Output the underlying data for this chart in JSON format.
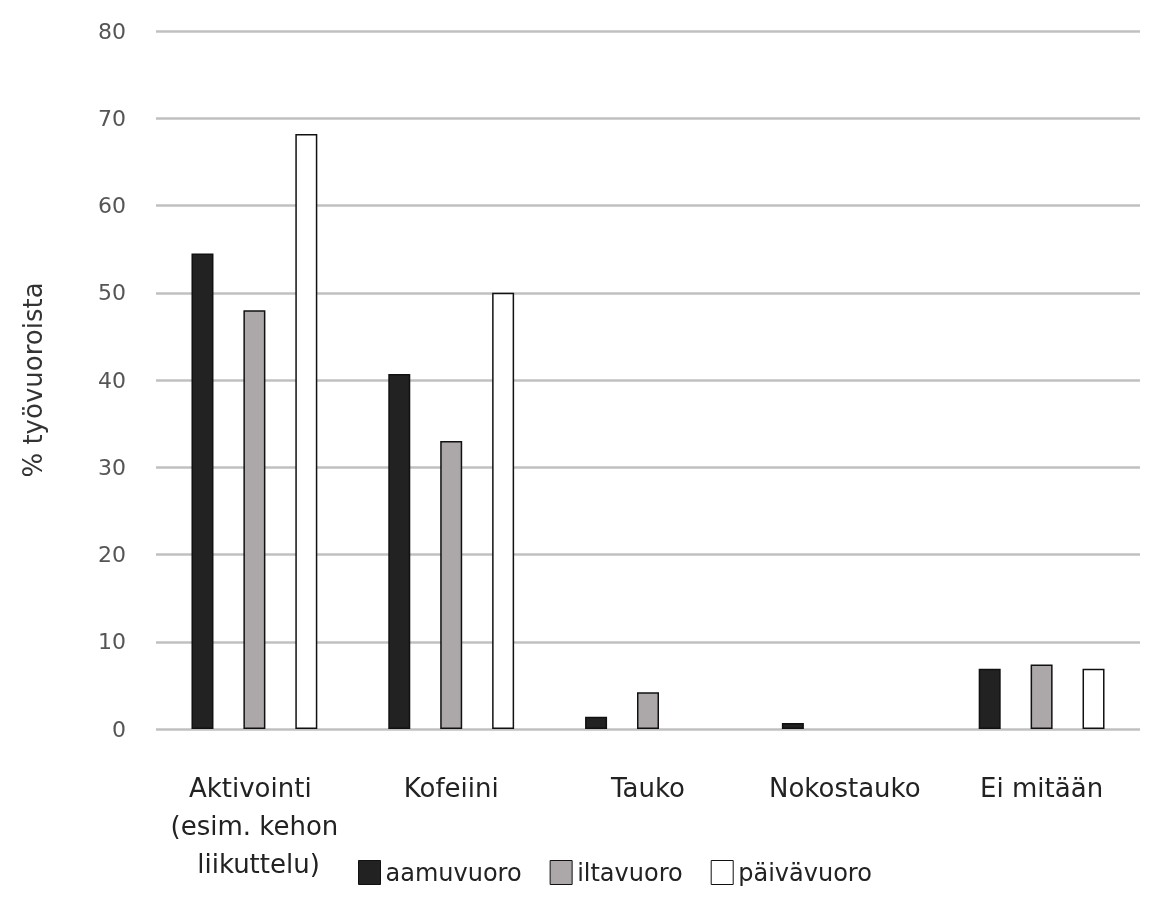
{
  "chart_data": {
    "type": "bar",
    "ylabel": "% työvuoroista",
    "categories": [
      "Aktivointi (esim. kehon liikuttelu)",
      "Kofeiini",
      "Tauko",
      "Nokostauko",
      "Ei mitään"
    ],
    "series": [
      {
        "name": "aamuvuoro",
        "color": "#222222",
        "values": [
          54.5,
          40.7,
          1.4,
          0.7,
          6.9
        ]
      },
      {
        "name": "iltavuoro",
        "color": "#aca8aa",
        "values": [
          48,
          33,
          4.2,
          0,
          7.4
        ]
      },
      {
        "name": "päivävuoro",
        "color": "#ffffff",
        "values": [
          68.2,
          50,
          0,
          0,
          6.9
        ]
      }
    ],
    "ylim": [
      0,
      80
    ],
    "yticks": [
      0,
      10,
      20,
      30,
      40,
      50,
      60,
      70,
      80
    ],
    "grid": "y",
    "legend": "bottom"
  }
}
